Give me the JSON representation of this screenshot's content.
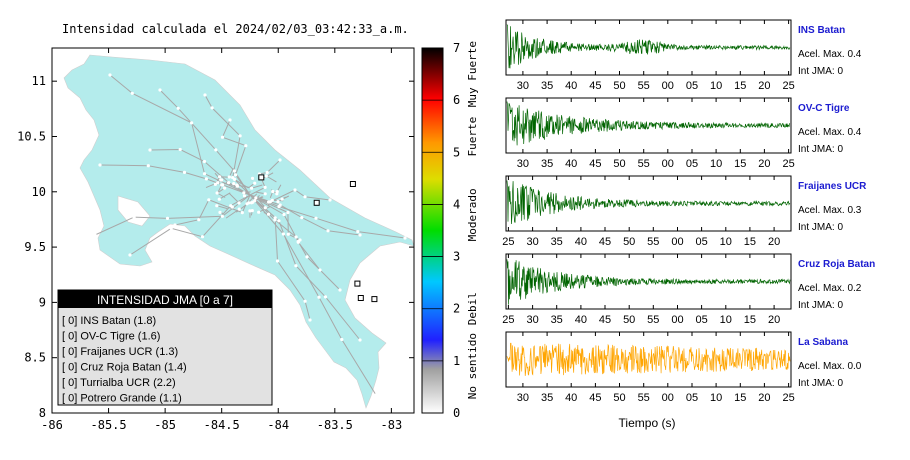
{
  "map": {
    "title": "Intensidad calculada el 2024/02/03_03:42:33_a.m.",
    "x_ticks": [
      "-86",
      "-85.5",
      "-85",
      "-84.5",
      "-84",
      "-83.5",
      "-83"
    ],
    "y_ticks": [
      "11",
      "10.5",
      "10",
      "9.5",
      "9",
      "8.5",
      "8"
    ],
    "xlim": [
      -86,
      -82.8
    ],
    "ylim": [
      8,
      11.3
    ],
    "colors": {
      "land": "#b4ecec",
      "road": "#a8a8a8",
      "frame": "#000000"
    },
    "stations": [
      {
        "lon": -84.15,
        "lat": 10.13
      },
      {
        "lon": -83.34,
        "lat": 10.07
      },
      {
        "lon": -83.66,
        "lat": 9.9
      },
      {
        "lon": -83.3,
        "lat": 9.17
      },
      {
        "lon": -83.27,
        "lat": 9.04
      },
      {
        "lon": -83.15,
        "lat": 9.03
      }
    ]
  },
  "legend": {
    "title": "INTENSIDAD JMA [0 a 7]",
    "items": [
      "[ 0]  INS Batan (1.8)",
      "[ 0]  OV-C Tigre (1.6)",
      "[ 0]  Fraijanes UCR (1.3)",
      "[ 0]  Cruz Roja Batan (1.4)",
      "[ 0]  Turrialba UCR (2.2)",
      "[ 0]  Potrero Grande (1.1)"
    ]
  },
  "colorbar": {
    "ticks": [
      "0",
      "1",
      "2",
      "3",
      "4",
      "5",
      "6",
      "7"
    ],
    "labels": [
      "No sentido",
      "Debil",
      "Moderado",
      "Fuerte",
      "Muy Fuerte"
    ],
    "range": [
      0,
      7
    ]
  },
  "chart_data": {
    "type": "line",
    "xlabel": "Tiempo (s)",
    "series": [
      {
        "name": "INS Batan",
        "line1": "Acel. Max. 0.4",
        "line2": "Int JMA: 0",
        "color": "#006400",
        "ticks": [
          "30",
          "35",
          "40",
          "45",
          "50",
          "55",
          "00",
          "05",
          "10",
          "15",
          "20",
          "25"
        ],
        "start_sec": 26.5
      },
      {
        "name": "OV-C Tigre",
        "line1": "Acel. Max. 0.4",
        "line2": "Int JMA: 0",
        "color": "#006400",
        "ticks": [
          "30",
          "35",
          "40",
          "45",
          "50",
          "55",
          "00",
          "05",
          "10",
          "15",
          "20",
          "25"
        ],
        "start_sec": 26.5
      },
      {
        "name": "Fraijanes UCR",
        "line1": "Acel. Max. 0.3",
        "line2": "Int JMA: 0",
        "color": "#006400",
        "ticks": [
          "25",
          "30",
          "35",
          "40",
          "45",
          "50",
          "55",
          "00",
          "05",
          "10",
          "15",
          "20"
        ],
        "start_sec": 24.5
      },
      {
        "name": "Cruz Roja Batan",
        "line1": "Acel. Max. 0.2",
        "line2": "Int JMA: 0",
        "color": "#006400",
        "ticks": [
          "25",
          "30",
          "35",
          "40",
          "45",
          "50",
          "55",
          "00",
          "05",
          "10",
          "15",
          "20"
        ],
        "start_sec": 24.5
      },
      {
        "name": "La Sabana",
        "line1": "Acel. Max. 0.0",
        "line2": "Int JMA: 0",
        "color": "#ffa500",
        "ticks": [
          "30",
          "35",
          "40",
          "45",
          "50",
          "55",
          "00",
          "05",
          "10",
          "15",
          "20",
          "25"
        ],
        "start_sec": 26.5
      }
    ]
  }
}
